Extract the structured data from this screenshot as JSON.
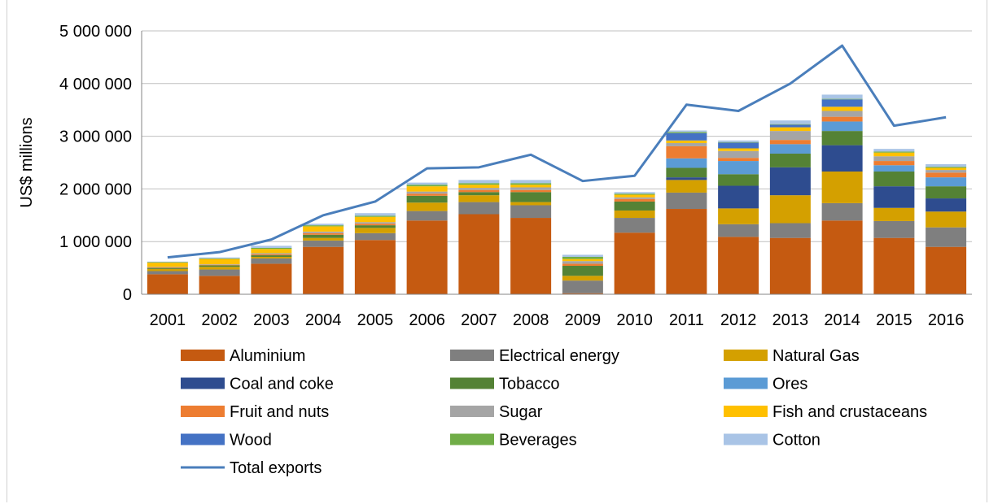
{
  "chart_data": {
    "type": "bar",
    "stacked": true,
    "categories": [
      "2001",
      "2002",
      "2003",
      "2004",
      "2005",
      "2006",
      "2007",
      "2008",
      "2009",
      "2010",
      "2011",
      "2012",
      "2013",
      "2014",
      "2015",
      "2016"
    ],
    "ylabel": "US$ millions",
    "ylim": [
      0,
      5000000
    ],
    "yticks": [
      0,
      1000000,
      2000000,
      3000000,
      4000000,
      5000000
    ],
    "ytick_labels": [
      "0",
      "1 000 000",
      "2 000 000",
      "3 000 000",
      "4 000 000",
      "5 000 000"
    ],
    "grid": true,
    "legend_position": "bottom",
    "series": [
      {
        "name": "Aluminium",
        "color": "#C55A11",
        "values": [
          380000,
          350000,
          580000,
          900000,
          1030000,
          1400000,
          1520000,
          1450000,
          20000,
          1170000,
          1620000,
          1090000,
          1070000,
          1400000,
          1070000,
          900000
        ]
      },
      {
        "name": "Electrical energy",
        "color": "#7F7F7F",
        "values": [
          60000,
          120000,
          100000,
          120000,
          130000,
          180000,
          230000,
          240000,
          240000,
          280000,
          310000,
          240000,
          280000,
          330000,
          320000,
          370000
        ]
      },
      {
        "name": "Natural Gas",
        "color": "#D4A000",
        "values": [
          40000,
          50000,
          30000,
          50000,
          100000,
          160000,
          130000,
          60000,
          90000,
          140000,
          240000,
          300000,
          530000,
          600000,
          250000,
          300000
        ]
      },
      {
        "name": "Coal and coke",
        "color": "#2E4C8F",
        "values": [
          0,
          0,
          0,
          0,
          0,
          0,
          0,
          0,
          0,
          0,
          50000,
          430000,
          530000,
          500000,
          410000,
          250000
        ]
      },
      {
        "name": "Tobacco",
        "color": "#548235",
        "values": [
          20000,
          30000,
          30000,
          60000,
          50000,
          130000,
          60000,
          190000,
          190000,
          170000,
          180000,
          220000,
          260000,
          270000,
          280000,
          230000
        ]
      },
      {
        "name": "Ores",
        "color": "#5B9BD5",
        "values": [
          0,
          0,
          0,
          0,
          0,
          0,
          0,
          0,
          0,
          0,
          180000,
          250000,
          180000,
          180000,
          120000,
          170000
        ]
      },
      {
        "name": "Fruit and nuts",
        "color": "#ED7D31",
        "values": [
          10000,
          10000,
          20000,
          30000,
          30000,
          40000,
          40000,
          40000,
          40000,
          50000,
          230000,
          60000,
          80000,
          90000,
          80000,
          90000
        ]
      },
      {
        "name": "Sugar",
        "color": "#A5A5A5",
        "values": [
          10000,
          10000,
          20000,
          30000,
          30000,
          40000,
          40000,
          50000,
          50000,
          30000,
          60000,
          130000,
          170000,
          110000,
          90000,
          50000
        ]
      },
      {
        "name": "Fish and crustaceans",
        "color": "#FFC000",
        "values": [
          80000,
          100000,
          80000,
          100000,
          100000,
          100000,
          60000,
          50000,
          40000,
          50000,
          50000,
          50000,
          70000,
          80000,
          70000,
          40000
        ]
      },
      {
        "name": "Wood",
        "color": "#4472C4",
        "values": [
          0,
          0,
          0,
          0,
          0,
          0,
          0,
          0,
          0,
          0,
          140000,
          110000,
          50000,
          140000,
          0,
          0
        ]
      },
      {
        "name": "Beverages",
        "color": "#70AD47",
        "values": [
          10000,
          10000,
          20000,
          20000,
          20000,
          30000,
          30000,
          30000,
          40000,
          20000,
          20000,
          10000,
          10000,
          10000,
          20000,
          20000
        ]
      },
      {
        "name": "Cotton",
        "color": "#A9C4E6",
        "values": [
          10000,
          20000,
          40000,
          30000,
          50000,
          40000,
          60000,
          60000,
          40000,
          30000,
          30000,
          30000,
          70000,
          80000,
          50000,
          50000
        ]
      }
    ],
    "line_series": {
      "name": "Total exports",
      "color": "#4A7EBB",
      "values": [
        700000,
        800000,
        1040000,
        1500000,
        1760000,
        2390000,
        2410000,
        2650000,
        2150000,
        2250000,
        3600000,
        3480000,
        4000000,
        4720000,
        3200000,
        3360000
      ]
    }
  }
}
